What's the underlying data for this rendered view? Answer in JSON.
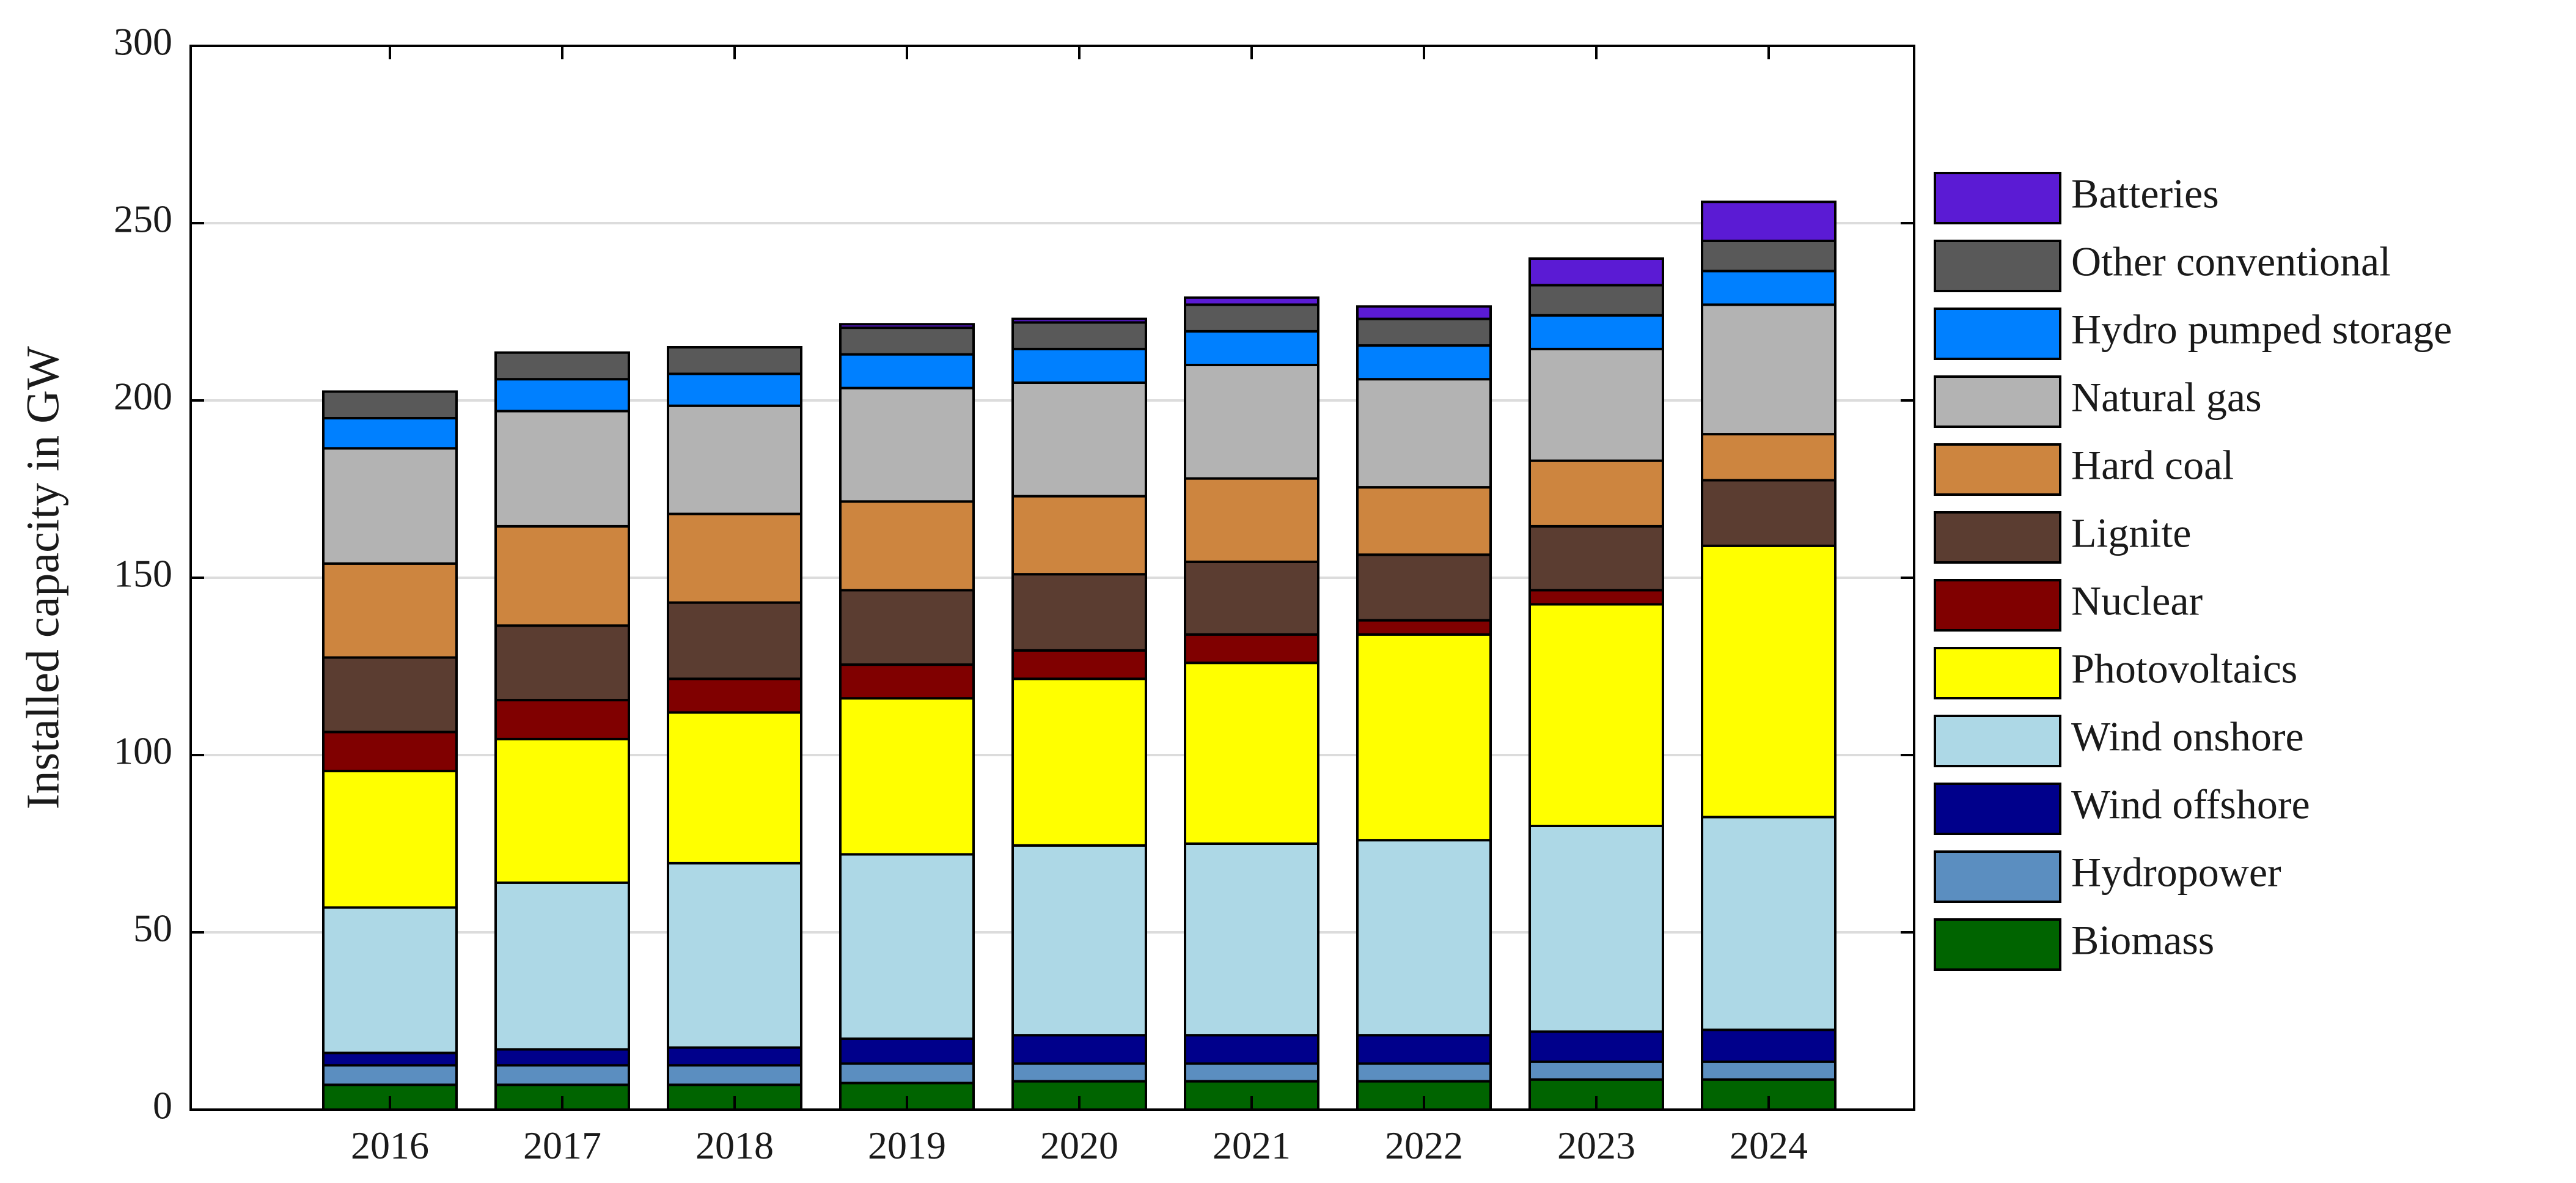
{
  "chart_data": {
    "type": "bar",
    "stacked": true,
    "title": "",
    "xlabel": "",
    "ylabel": "Installed capacity in GW",
    "ylim": [
      0,
      300
    ],
    "yticks": [
      0,
      50,
      100,
      150,
      200,
      250,
      300
    ],
    "grid": "horizontal",
    "legend_position": "right",
    "categories": [
      "2016",
      "2017",
      "2018",
      "2019",
      "2020",
      "2021",
      "2022",
      "2023",
      "2024"
    ],
    "series": [
      {
        "name": "Biomass",
        "color": "#006400",
        "values": [
          7,
          7,
          7,
          7.5,
          8,
          8,
          8,
          8.5,
          8.5
        ]
      },
      {
        "name": "Hydropower",
        "color": "#5b8ec0",
        "values": [
          5.5,
          5.5,
          5.5,
          5.5,
          5,
          5,
          5,
          5,
          5
        ]
      },
      {
        "name": "Wind offshore",
        "color": "#00008b",
        "values": [
          3.5,
          4.5,
          5,
          7,
          8,
          8,
          8,
          8.5,
          9
        ]
      },
      {
        "name": "Wind onshore",
        "color": "#add8e6",
        "values": [
          41,
          47,
          52,
          52,
          53.5,
          54,
          55,
          58,
          60
        ]
      },
      {
        "name": "Photovoltaics",
        "color": "#ffff00",
        "values": [
          38.5,
          40.5,
          42.5,
          44,
          47,
          51,
          58,
          62.5,
          76.5
        ]
      },
      {
        "name": "Nuclear",
        "color": "#800000",
        "values": [
          11,
          11,
          9.5,
          9.5,
          8,
          8,
          4,
          4,
          0
        ]
      },
      {
        "name": "Lignite",
        "color": "#5b3d31",
        "values": [
          21,
          21,
          21.5,
          21,
          21.5,
          20.5,
          18.5,
          18,
          18.5
        ]
      },
      {
        "name": "Hard coal",
        "color": "#cd853f",
        "values": [
          26.5,
          28,
          25,
          25,
          22,
          23.5,
          19,
          18.5,
          13
        ]
      },
      {
        "name": "Natural gas",
        "color": "#b3b3b3",
        "values": [
          32.5,
          32.5,
          30.5,
          32,
          32,
          32,
          30.5,
          31.5,
          36.5
        ]
      },
      {
        "name": "Hydro pumped storage",
        "color": "#0080ff",
        "values": [
          8.5,
          9,
          9,
          9.5,
          9.5,
          9.5,
          9.5,
          9.5,
          9.5
        ]
      },
      {
        "name": "Other conventional",
        "color": "#595959",
        "values": [
          7.5,
          7.5,
          7.5,
          7.5,
          7.5,
          7.5,
          7.5,
          8.5,
          8.5
        ]
      },
      {
        "name": "Batteries",
        "color": "#5b1bd4",
        "values": [
          0,
          0,
          0,
          1,
          1,
          2,
          3.5,
          7.5,
          11
        ]
      }
    ]
  }
}
